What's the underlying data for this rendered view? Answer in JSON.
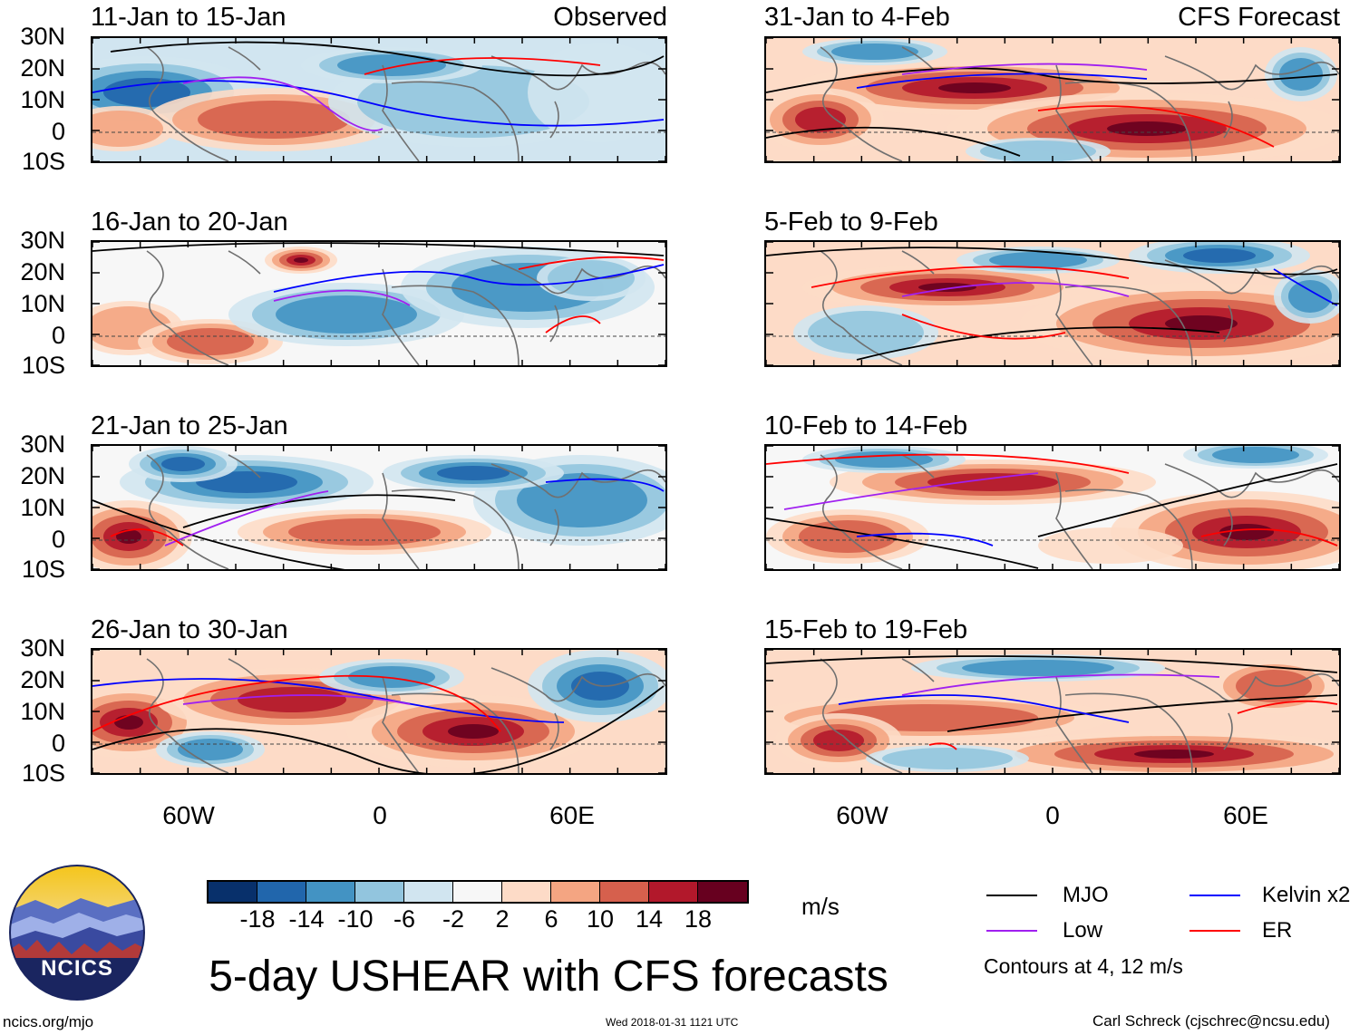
{
  "title": "5-day USHEAR with CFS forecasts",
  "left_tag": "Observed",
  "right_tag": "CFS Forecast",
  "y_labels": [
    "30N",
    "20N",
    "10N",
    "0",
    "10S"
  ],
  "x_labels": [
    "60W",
    "0",
    "60E"
  ],
  "panels": {
    "left": [
      "11-Jan to 15-Jan",
      "16-Jan to 20-Jan",
      "21-Jan to 25-Jan",
      "26-Jan to 30-Jan"
    ],
    "right": [
      "31-Jan to 4-Feb",
      "5-Feb to 9-Feb",
      "10-Feb to 14-Feb",
      "15-Feb to 19-Feb"
    ]
  },
  "colorbar": {
    "unit": "m/s",
    "labels": [
      "-18",
      "-14",
      "-10",
      "-6",
      "-2",
      "2",
      "6",
      "10",
      "14",
      "18"
    ],
    "colors": [
      "#08306b",
      "#2166ac",
      "#4393c3",
      "#92c5de",
      "#d1e5f0",
      "#f7f7f7",
      "#fddbc7",
      "#f4a582",
      "#d6604d",
      "#b2182b",
      "#67001f"
    ]
  },
  "legend": {
    "mjo": {
      "label": "MJO",
      "color": "#000000"
    },
    "kelvin": {
      "label": "Kelvin x2",
      "color": "#0000ff"
    },
    "low": {
      "label": "Low",
      "color": "#a020f0"
    },
    "er": {
      "label": "ER",
      "color": "#ff0000"
    },
    "note": "Contours at 4, 12 m/s"
  },
  "logo_text": "NCICS",
  "footer": {
    "url": "ncics.org/mjo",
    "timestamp": "Wed 2018-01-31 1121 UTC",
    "author": "Carl Schreck (cjschrec@ncsu.edu)"
  }
}
